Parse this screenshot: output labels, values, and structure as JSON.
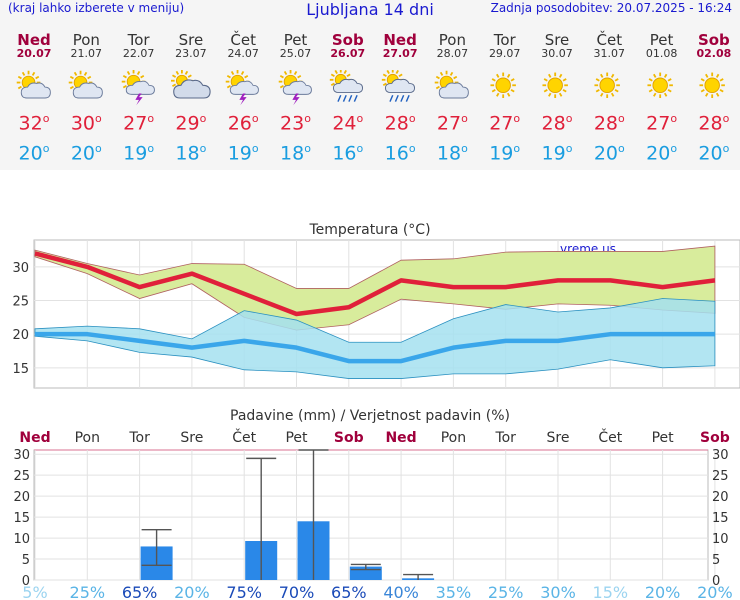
{
  "header": {
    "left_note": "(kraj lahko izberete v meniju)",
    "title": "Ljubljana 14 dni",
    "updated": "Zadnja posodobitev: 20.07.2025 - 16:24"
  },
  "days": [
    {
      "name": "Ned",
      "date": "20.07",
      "weekend": true,
      "icon": "partly-cloudy-icon",
      "max": "32",
      "min": "20"
    },
    {
      "name": "Pon",
      "date": "21.07",
      "weekend": false,
      "icon": "partly-cloudy-icon",
      "max": "30",
      "min": "20"
    },
    {
      "name": "Tor",
      "date": "22.07",
      "weekend": false,
      "icon": "thunderstorm-sun-icon",
      "max": "27",
      "min": "19"
    },
    {
      "name": "Sre",
      "date": "23.07",
      "weekend": false,
      "icon": "mostly-cloudy-icon",
      "max": "29",
      "min": "18"
    },
    {
      "name": "Čet",
      "date": "24.07",
      "weekend": false,
      "icon": "thunderstorm-sun-icon",
      "max": "26",
      "min": "19"
    },
    {
      "name": "Pet",
      "date": "25.07",
      "weekend": false,
      "icon": "thunderstorm-sun-icon",
      "max": "23",
      "min": "18"
    },
    {
      "name": "Sob",
      "date": "26.07",
      "weekend": true,
      "icon": "rain-shower-icon",
      "max": "24",
      "min": "16"
    },
    {
      "name": "Ned",
      "date": "27.07",
      "weekend": true,
      "icon": "rain-shower-icon",
      "max": "28",
      "min": "16"
    },
    {
      "name": "Pon",
      "date": "28.07",
      "weekend": false,
      "icon": "partly-cloudy-icon",
      "max": "27",
      "min": "18"
    },
    {
      "name": "Tor",
      "date": "29.07",
      "weekend": false,
      "icon": "sunny-icon",
      "max": "27",
      "min": "19"
    },
    {
      "name": "Sre",
      "date": "30.07",
      "weekend": false,
      "icon": "sunny-icon",
      "max": "28",
      "min": "19"
    },
    {
      "name": "Čet",
      "date": "31.07",
      "weekend": false,
      "icon": "sunny-icon",
      "max": "28",
      "min": "20"
    },
    {
      "name": "Pet",
      "date": "01.08",
      "weekend": false,
      "icon": "sunny-icon",
      "max": "27",
      "min": "20"
    },
    {
      "name": "Sob",
      "date": "02.08",
      "weekend": true,
      "icon": "sunny-icon",
      "max": "28",
      "min": "20"
    }
  ],
  "colors": {
    "max": "#e0203a",
    "min": "#1a9de0",
    "weekend": "#a0003c",
    "max_band": "#d8ec9c",
    "min_band": "#a4e0f0",
    "overlap": "#8cd68c",
    "precip_bar": "#2a88e8"
  },
  "chart_data": [
    {
      "type": "line",
      "title": "Temperatura (°C)",
      "watermark": "vreme.us",
      "x": [
        "20.07",
        "21.07",
        "22.07",
        "23.07",
        "24.07",
        "25.07",
        "26.07",
        "27.07",
        "28.07",
        "29.07",
        "30.07",
        "31.07",
        "01.08",
        "02.08"
      ],
      "ylim": [
        12,
        34
      ],
      "yticks": [
        15,
        20,
        25,
        30
      ],
      "grid": true,
      "series": [
        {
          "name": "max",
          "values": [
            32,
            30,
            27,
            29,
            26,
            23,
            24,
            28,
            27,
            27,
            28,
            28,
            27,
            28
          ],
          "band_low": [
            31.5,
            29,
            25.3,
            27.5,
            22.5,
            20.6,
            21.4,
            25.2,
            24.5,
            23.7,
            24.5,
            24.3,
            23.6,
            23.1
          ],
          "band_high": [
            32.5,
            30.5,
            28.8,
            30.5,
            30.4,
            26.8,
            26.8,
            31,
            31.2,
            32.2,
            32.3,
            32.3,
            32.3,
            33.1
          ]
        },
        {
          "name": "min",
          "values": [
            20,
            20,
            19,
            18,
            19,
            18,
            16,
            16,
            18,
            19,
            19,
            20,
            20,
            20
          ],
          "band_low": [
            19.7,
            19,
            17.3,
            16.6,
            14.7,
            14.4,
            13.4,
            13.4,
            14.1,
            14.1,
            14.8,
            16.2,
            15,
            15.3
          ],
          "band_high": [
            20.8,
            21.2,
            20.8,
            19.3,
            23.5,
            22.1,
            18.8,
            18.8,
            22.3,
            24.4,
            23.3,
            23.9,
            25.3,
            24.9
          ]
        }
      ]
    },
    {
      "type": "bar",
      "title": "Padavine (mm) / Verjetnost padavin (%)",
      "categories": [
        "Ned",
        "Pon",
        "Tor",
        "Sre",
        "Čet",
        "Pet",
        "Sob",
        "Ned",
        "Pon",
        "Tor",
        "Sre",
        "Čet",
        "Pet",
        "Sob"
      ],
      "weekend": [
        true,
        false,
        false,
        false,
        false,
        false,
        true,
        true,
        false,
        false,
        false,
        false,
        false,
        true
      ],
      "ylim": [
        0,
        31
      ],
      "yticks": [
        0,
        5,
        10,
        15,
        20,
        25,
        30
      ],
      "values": [
        0,
        0,
        8,
        0,
        9.3,
        14,
        3.2,
        0.4,
        0,
        0,
        0,
        0,
        0,
        0
      ],
      "error_high": [
        0,
        0,
        12,
        0,
        29,
        31,
        3.7,
        1.3,
        0,
        0,
        0,
        0,
        0,
        0
      ],
      "error_low": [
        0,
        0,
        3.5,
        0,
        0,
        0,
        2.5,
        0,
        0,
        0,
        0,
        0,
        0,
        0
      ],
      "probability": [
        "5%",
        "25%",
        "65%",
        "20%",
        "75%",
        "70%",
        "65%",
        "40%",
        "35%",
        "25%",
        "30%",
        "15%",
        "20%",
        "20%"
      ],
      "probability_values": [
        5,
        25,
        65,
        20,
        75,
        70,
        65,
        40,
        35,
        25,
        30,
        15,
        20,
        20
      ]
    }
  ]
}
